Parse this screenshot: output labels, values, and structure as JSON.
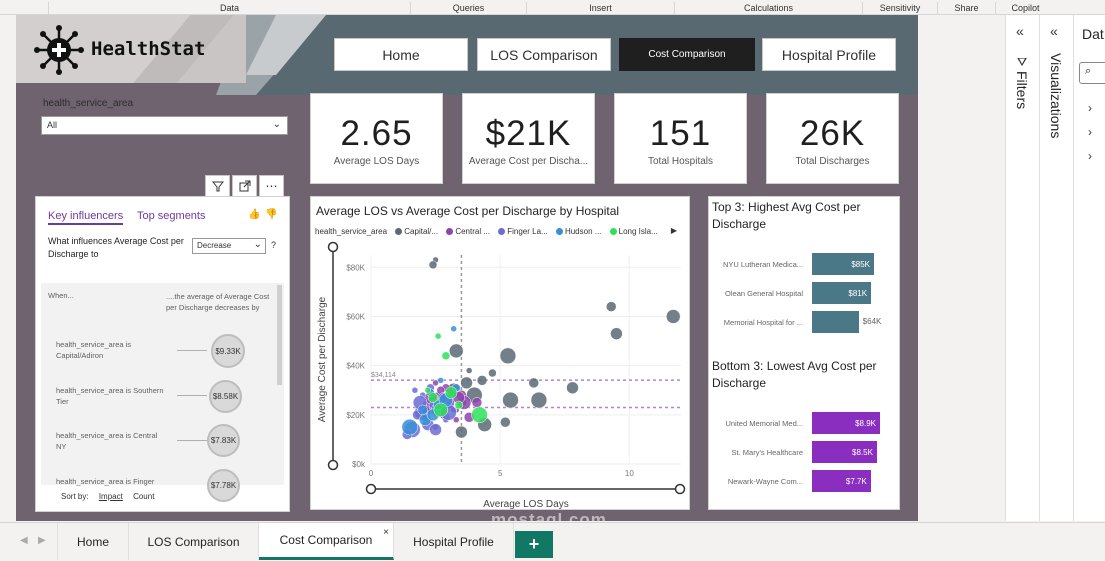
{
  "ribbon": {
    "groups": [
      "Data",
      "Queries",
      "Insert",
      "Calculations",
      "Sensitivity",
      "Share",
      "Copilot"
    ]
  },
  "logo": {
    "text": "HealthStat"
  },
  "nav": {
    "buttons": [
      "Home",
      "LOS Comparison",
      "Cost Comparison",
      "Hospital Profile"
    ],
    "active": "Cost Comparison"
  },
  "slicer": {
    "label": "health_service_area",
    "value": "All"
  },
  "cards": [
    {
      "value": "2.65",
      "label": "Average LOS Days"
    },
    {
      "value": "$21K",
      "label": "Average Cost per Discha..."
    },
    {
      "value": "151",
      "label": "Total Hospitals"
    },
    {
      "value": "26K",
      "label": "Total Discharges"
    }
  ],
  "key_influencers": {
    "tabs": [
      "Key influencers",
      "Top segments"
    ],
    "question": "What influences Average Cost per Discharge to",
    "direction": "Decrease",
    "help": "?",
    "when_label": "When...",
    "avg_label": "....the average of Average Cost per Discharge decreases by",
    "rows": [
      {
        "label": "health_service_area is Capital/Adiron",
        "value": "$9.33K"
      },
      {
        "label": "health_service_area is Southern Tier",
        "value": "$8.58K"
      },
      {
        "label": "health_service_area is Central NY",
        "value": "$7.83K"
      },
      {
        "label": "health_service_area is Finger Lakes",
        "value": "$7.78K"
      }
    ],
    "sort_label": "Sort by:",
    "sort_options": [
      "Impact",
      "Count"
    ]
  },
  "scatter": {
    "title": "Average LOS vs Average Cost per Discharge by Hospital",
    "legend_title": "health_service_area",
    "legend": [
      {
        "name": "Capital/...",
        "color": "#5b6a76"
      },
      {
        "name": "Central ...",
        "color": "#8e44ad"
      },
      {
        "name": "Finger La...",
        "color": "#6c6cd6"
      },
      {
        "name": "Hudson ...",
        "color": "#3a8fd8"
      },
      {
        "name": "Long Isla...",
        "color": "#2ee05a"
      }
    ],
    "ref_label": "$34,114"
  },
  "chart_data": {
    "type": "scatter",
    "title": "Average LOS vs Average Cost per Discharge by Hospital",
    "xlabel": "Average LOS Days",
    "ylabel": "Average Cost per Discharge",
    "xlim": [
      0,
      12
    ],
    "ylim": [
      0,
      85000
    ],
    "x_ticks": [
      0,
      5,
      10
    ],
    "x_tick_labels": [
      "0",
      "5",
      "10"
    ],
    "y_ticks": [
      0,
      20000,
      40000,
      60000,
      80000
    ],
    "y_tick_labels": [
      "$0k",
      "$20K",
      "$40K",
      "$60K",
      "$80K"
    ],
    "ref_lines": {
      "x_avg": 3.5,
      "y_values": [
        34114,
        23000
      ]
    },
    "ref_label": "$34,114",
    "series": [
      {
        "name": "Capital/Adiron",
        "color": "#5b6a76",
        "points": [
          [
            2.5,
            83000
          ],
          [
            2.4,
            81000
          ],
          [
            9.3,
            64000
          ],
          [
            9.5,
            53000
          ],
          [
            3.3,
            46000
          ],
          [
            5.3,
            44000
          ],
          [
            3.8,
            38000
          ],
          [
            4.7,
            37000
          ],
          [
            6.3,
            33000
          ],
          [
            7.8,
            31000
          ],
          [
            3.2,
            30000
          ],
          [
            4.0,
            28000
          ],
          [
            3.6,
            25000
          ],
          [
            2.9,
            19000
          ],
          [
            5.2,
            17000
          ],
          [
            3.5,
            13000
          ],
          [
            4.4,
            16000
          ],
          [
            6.5,
            26000
          ],
          [
            3.3,
            22000
          ],
          [
            2.8,
            27000
          ],
          [
            4.3,
            34000
          ],
          [
            3.7,
            33000
          ],
          [
            11.7,
            60000
          ],
          [
            5.4,
            26000
          ],
          [
            2.5,
            15000
          ]
        ]
      },
      {
        "name": "Central NY",
        "color": "#8e44ad",
        "points": [
          [
            2.5,
            33000
          ],
          [
            2.9,
            31000
          ],
          [
            3.5,
            28000
          ],
          [
            3.0,
            25000
          ],
          [
            2.2,
            23000
          ],
          [
            2.6,
            26000
          ],
          [
            3.2,
            22000
          ],
          [
            2.8,
            20000
          ],
          [
            3.8,
            19000
          ],
          [
            2.3,
            27000
          ],
          [
            3.6,
            25000
          ],
          [
            2.0,
            21000
          ],
          [
            3.3,
            18000
          ],
          [
            2.7,
            30000
          ],
          [
            4.1,
            25000
          ],
          [
            3.4,
            27000
          ]
        ]
      },
      {
        "name": "Finger Lakes",
        "color": "#6c6cd6",
        "points": [
          [
            2.0,
            28000
          ],
          [
            2.4,
            24000
          ],
          [
            1.8,
            20000
          ],
          [
            2.2,
            16000
          ],
          [
            2.6,
            22000
          ],
          [
            1.6,
            14000
          ],
          [
            2.9,
            18000
          ],
          [
            2.3,
            31000
          ],
          [
            1.4,
            12000
          ],
          [
            2.5,
            14000
          ],
          [
            1.9,
            25000
          ],
          [
            3.0,
            21000
          ],
          [
            1.7,
            30000
          ],
          [
            2.1,
            19000
          ],
          [
            2.8,
            27000
          ]
        ]
      },
      {
        "name": "Hudson Valley",
        "color": "#3a8fd8",
        "points": [
          [
            3.2,
            55000
          ],
          [
            2.3,
            29000
          ],
          [
            2.6,
            24000
          ],
          [
            2.1,
            18000
          ],
          [
            2.9,
            26000
          ],
          [
            1.5,
            15000
          ],
          [
            2.7,
            34000
          ],
          [
            3.3,
            31000
          ],
          [
            2.0,
            22000
          ],
          [
            2.4,
            20000
          ]
        ]
      },
      {
        "name": "Long Island",
        "color": "#2ee05a",
        "points": [
          [
            2.6,
            52000
          ],
          [
            2.9,
            44000
          ],
          [
            2.4,
            27000
          ],
          [
            3.1,
            29000
          ],
          [
            2.7,
            22000
          ],
          [
            4.2,
            20000
          ],
          [
            2.2,
            30000
          ],
          [
            3.4,
            24000
          ]
        ]
      }
    ]
  },
  "top3": {
    "title": "Top 3: Highest Avg Cost per Discharge",
    "items": [
      {
        "name": "NYU Lutheran Medica...",
        "value": 85,
        "label": "$85K"
      },
      {
        "name": "Olean General Hospital",
        "value": 81,
        "label": "$81K"
      },
      {
        "name": "Memorial Hospital for ...",
        "value": 64,
        "label": "$64K"
      }
    ],
    "color": "#4b7886"
  },
  "bottom3": {
    "title": "Bottom 3: Lowest Avg Cost per Discharge",
    "items": [
      {
        "name": "United Memorial Med...",
        "value": 8.9,
        "label": "$8.9K"
      },
      {
        "name": "St. Mary's Healthcare",
        "value": 8.5,
        "label": "$8.5K"
      },
      {
        "name": "Newark-Wayne Com...",
        "value": 7.7,
        "label": "$7.7K"
      }
    ],
    "color": "#8a2ec0"
  },
  "panes": {
    "filters": "Filters",
    "visualizations": "Visualizations",
    "data": "Dat"
  },
  "tabs": [
    "Home",
    "LOS Comparison",
    "Cost Comparison",
    "Hospital Profile"
  ],
  "active_tab": "Cost Comparison",
  "watermark": "mostaql.com"
}
